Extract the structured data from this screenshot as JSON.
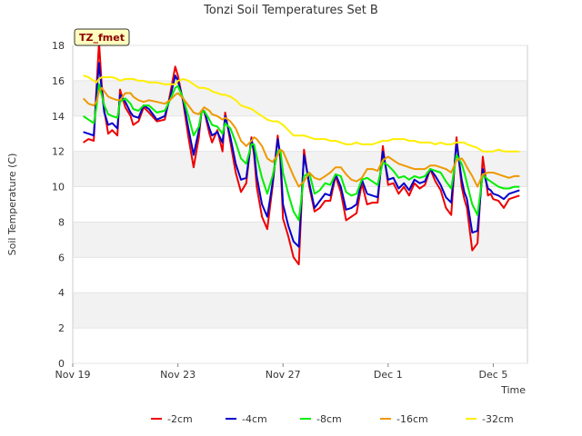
{
  "chart_data": {
    "type": "line",
    "title": "Tonzi Soil Temperatures Set B",
    "xlabel": "Time",
    "ylabel": "Soil Temperature (C)",
    "badge": "TZ_fmet",
    "xlim": [
      0,
      17.3
    ],
    "ylim": [
      0,
      18
    ],
    "yticks": [
      0,
      2,
      4,
      6,
      8,
      10,
      12,
      14,
      16,
      18
    ],
    "xticks": [
      {
        "value": 0,
        "label": "Nov 19"
      },
      {
        "value": 4,
        "label": "Nov 23"
      },
      {
        "value": 8,
        "label": "Nov 27"
      },
      {
        "value": 12,
        "label": "Dec 1"
      },
      {
        "value": 16,
        "label": "Dec 5"
      }
    ],
    "x": [
      0.4,
      0.6,
      0.8,
      0.9,
      1.0,
      1.1,
      1.2,
      1.35,
      1.5,
      1.7,
      1.8,
      2.0,
      2.2,
      2.3,
      2.5,
      2.7,
      2.9,
      3.2,
      3.5,
      3.7,
      3.9,
      4.0,
      4.2,
      4.4,
      4.6,
      4.8,
      4.9,
      5.0,
      5.2,
      5.3,
      5.5,
      5.7,
      5.8,
      6.0,
      6.2,
      6.4,
      6.6,
      6.8,
      6.9,
      7.0,
      7.2,
      7.4,
      7.6,
      7.8,
      7.9,
      8.0,
      8.2,
      8.4,
      8.6,
      8.8,
      9.0,
      9.2,
      9.4,
      9.6,
      9.8,
      10.0,
      10.2,
      10.4,
      10.6,
      10.8,
      11.0,
      11.2,
      11.4,
      11.6,
      11.8,
      12.0,
      12.2,
      12.4,
      12.6,
      12.8,
      13.0,
      13.2,
      13.4,
      13.6,
      13.8,
      14.0,
      14.2,
      14.4,
      14.6,
      14.8,
      14.9,
      15.0,
      15.2,
      15.4,
      15.6,
      15.8,
      15.9,
      16.0,
      16.2,
      16.4,
      16.6,
      16.8,
      17.0
    ],
    "series": [
      {
        "name": "-2cm",
        "color": "#ee0000",
        "values": [
          12.5,
          12.7,
          12.6,
          15.5,
          18.2,
          15.8,
          14.3,
          13.0,
          13.2,
          12.9,
          15.5,
          14.5,
          14.0,
          13.5,
          13.7,
          14.5,
          14.2,
          13.7,
          13.8,
          15.2,
          16.8,
          16.3,
          14.8,
          12.8,
          11.1,
          12.8,
          14.3,
          14.3,
          13.0,
          12.5,
          13.2,
          12.0,
          14.2,
          12.5,
          10.8,
          9.7,
          10.2,
          12.8,
          11.8,
          10.0,
          8.3,
          7.6,
          10.0,
          12.9,
          11.5,
          8.2,
          7.2,
          6.0,
          5.6,
          12.1,
          10.0,
          8.6,
          8.8,
          9.2,
          9.2,
          10.6,
          9.7,
          8.1,
          8.3,
          8.5,
          10.2,
          9.0,
          9.1,
          9.1,
          12.3,
          10.1,
          10.2,
          9.6,
          10.0,
          9.5,
          10.2,
          9.9,
          10.1,
          11.0,
          10.3,
          9.8,
          8.8,
          8.4,
          12.8,
          10.0,
          9.3,
          8.8,
          6.4,
          6.8,
          11.7,
          9.5,
          9.6,
          9.3,
          9.2,
          8.8,
          9.3,
          9.4,
          9.5
        ]
      },
      {
        "name": "-4cm",
        "color": "#0000cc",
        "values": [
          13.1,
          13.0,
          12.9,
          15.2,
          17.0,
          15.5,
          14.2,
          13.5,
          13.6,
          13.3,
          15.2,
          14.8,
          14.2,
          14.0,
          13.9,
          14.6,
          14.4,
          13.8,
          14.0,
          15.0,
          16.3,
          16.0,
          14.9,
          13.3,
          11.8,
          13.2,
          14.2,
          14.3,
          13.3,
          12.9,
          13.1,
          12.5,
          14.0,
          12.8,
          11.3,
          10.4,
          10.5,
          12.7,
          12.0,
          10.6,
          9.0,
          8.3,
          10.2,
          12.7,
          11.8,
          9.0,
          7.8,
          6.9,
          6.6,
          11.8,
          10.2,
          8.8,
          9.2,
          9.6,
          9.5,
          10.7,
          10.0,
          8.7,
          8.8,
          9.0,
          10.4,
          9.6,
          9.5,
          9.4,
          12.0,
          10.4,
          10.5,
          9.9,
          10.2,
          9.8,
          10.4,
          10.2,
          10.3,
          11.0,
          10.6,
          10.1,
          9.4,
          9.1,
          12.5,
          10.4,
          9.7,
          9.3,
          7.4,
          7.5,
          11.0,
          9.9,
          9.8,
          9.6,
          9.5,
          9.3,
          9.6,
          9.7,
          9.8
        ]
      },
      {
        "name": "-8cm",
        "color": "#00ee00",
        "values": [
          14.0,
          13.8,
          13.6,
          14.5,
          15.8,
          15.2,
          14.6,
          14.1,
          14.0,
          13.9,
          14.8,
          15.0,
          14.7,
          14.4,
          14.3,
          14.6,
          14.6,
          14.2,
          14.3,
          14.9,
          15.6,
          15.7,
          15.0,
          14.0,
          12.9,
          13.4,
          14.2,
          14.3,
          13.8,
          13.5,
          13.4,
          13.0,
          13.6,
          13.3,
          12.5,
          11.6,
          11.3,
          12.4,
          12.4,
          11.7,
          10.5,
          9.6,
          10.6,
          12.0,
          12.1,
          10.8,
          9.6,
          8.6,
          8.1,
          10.6,
          10.8,
          9.6,
          9.8,
          10.2,
          10.1,
          10.7,
          10.6,
          9.7,
          9.5,
          9.6,
          10.4,
          10.5,
          10.3,
          10.1,
          11.4,
          11.2,
          10.9,
          10.5,
          10.6,
          10.4,
          10.6,
          10.5,
          10.6,
          11.0,
          10.9,
          10.8,
          10.3,
          9.9,
          11.8,
          11.3,
          10.8,
          10.2,
          9.0,
          8.4,
          10.7,
          10.4,
          10.3,
          10.2,
          10.0,
          9.9,
          9.9,
          10.0,
          10.0
        ]
      },
      {
        "name": "-16cm",
        "color": "#ee9900",
        "values": [
          15.0,
          14.7,
          14.6,
          14.8,
          15.4,
          15.6,
          15.4,
          15.1,
          15.0,
          14.9,
          14.9,
          15.3,
          15.3,
          15.1,
          14.9,
          14.8,
          14.9,
          14.8,
          14.7,
          14.9,
          15.2,
          15.3,
          15.0,
          14.6,
          14.2,
          14.1,
          14.3,
          14.5,
          14.3,
          14.1,
          14.0,
          13.8,
          13.9,
          13.7,
          13.3,
          12.6,
          12.3,
          12.6,
          12.8,
          12.7,
          12.3,
          11.6,
          11.4,
          11.8,
          12.1,
          12.0,
          11.3,
          10.6,
          10.0,
          10.3,
          10.8,
          10.5,
          10.4,
          10.6,
          10.8,
          11.1,
          11.1,
          10.7,
          10.4,
          10.3,
          10.5,
          11.0,
          11.0,
          10.9,
          11.5,
          11.7,
          11.5,
          11.3,
          11.2,
          11.1,
          11.0,
          11.0,
          11.0,
          11.2,
          11.2,
          11.1,
          11.0,
          10.8,
          11.5,
          11.6,
          11.4,
          11.1,
          10.6,
          10.0,
          10.7,
          10.8,
          10.8,
          10.8,
          10.7,
          10.6,
          10.5,
          10.6,
          10.6
        ]
      },
      {
        "name": "-32cm",
        "color": "#ffee00",
        "values": [
          16.3,
          16.2,
          16.0,
          15.9,
          16.1,
          16.2,
          16.2,
          16.2,
          16.2,
          16.1,
          16.0,
          16.1,
          16.1,
          16.1,
          16.0,
          16.0,
          15.9,
          15.9,
          15.8,
          15.8,
          15.8,
          16.0,
          16.1,
          16.0,
          15.8,
          15.6,
          15.6,
          15.6,
          15.5,
          15.4,
          15.3,
          15.2,
          15.2,
          15.1,
          14.9,
          14.6,
          14.5,
          14.4,
          14.3,
          14.2,
          14.0,
          13.8,
          13.7,
          13.7,
          13.6,
          13.5,
          13.2,
          12.9,
          12.9,
          12.9,
          12.8,
          12.7,
          12.7,
          12.7,
          12.6,
          12.6,
          12.5,
          12.4,
          12.4,
          12.5,
          12.4,
          12.4,
          12.4,
          12.5,
          12.6,
          12.6,
          12.7,
          12.7,
          12.7,
          12.6,
          12.6,
          12.5,
          12.5,
          12.5,
          12.4,
          12.5,
          12.4,
          12.4,
          12.5,
          12.5,
          12.5,
          12.4,
          12.3,
          12.2,
          12.0,
          12.0,
          12.0,
          12.0,
          12.1,
          12.0,
          12.0,
          12.0,
          12.0
        ]
      }
    ]
  }
}
